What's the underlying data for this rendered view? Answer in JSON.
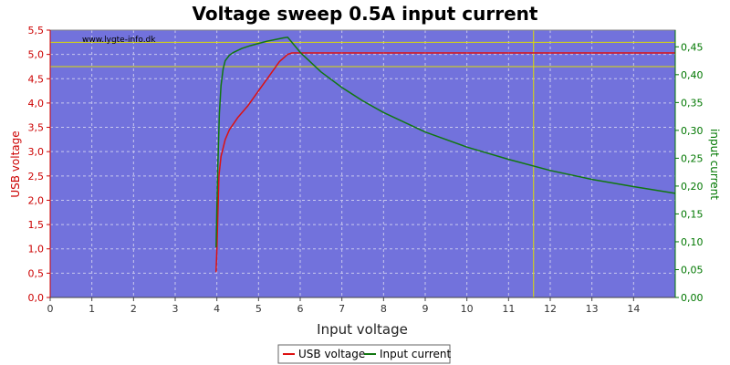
{
  "chart_data": {
    "type": "line",
    "title": "Voltage sweep 0.5A input current",
    "watermark": "www.lygte-info.dk",
    "xlabel": "Input voltage",
    "ylabel": "USB voltage",
    "y2label": "input current",
    "xlim": [
      0,
      15
    ],
    "ylim": [
      0,
      5.5
    ],
    "y2lim": [
      0,
      0.48
    ],
    "x_ticks": [
      "0",
      "1",
      "2",
      "3",
      "4",
      "5",
      "6",
      "7",
      "8",
      "9",
      "10",
      "11",
      "12",
      "13",
      "14"
    ],
    "y_ticks": [
      "0,0",
      "0,5",
      "1,0",
      "1,5",
      "2,0",
      "2,5",
      "3,0",
      "3,5",
      "4,0",
      "4,5",
      "5,0",
      "5,5"
    ],
    "y2_ticks": [
      "0,00",
      "0,05",
      "0,10",
      "0,15",
      "0,20",
      "0,25",
      "0,30",
      "0,35",
      "0,40",
      "0,45"
    ],
    "grid": true,
    "legend_position": "bottom-center",
    "colors": {
      "plot_background": "#7272dc",
      "grid": "#c8c8ee",
      "usb_voltage": "#dd1111",
      "input_current": "#117711",
      "marker_lines": "#dddd00",
      "left_axis": "#cc0000",
      "right_axis": "#007700"
    },
    "reference_lines": {
      "horizontal_y_voltage": [
        5.25,
        4.75
      ],
      "vertical_x": [
        11.6
      ]
    },
    "series": [
      {
        "name": "USB voltage",
        "axis": "left",
        "x": [
          3.98,
          4.0,
          4.05,
          4.1,
          4.2,
          4.3,
          4.5,
          4.75,
          5.0,
          5.25,
          5.5,
          5.7,
          5.8,
          6.0,
          8.0,
          10.0,
          12.0,
          14.0,
          15.0
        ],
        "y": [
          0.52,
          1.0,
          2.5,
          2.9,
          3.25,
          3.45,
          3.7,
          3.95,
          4.25,
          4.55,
          4.85,
          5.0,
          5.03,
          5.03,
          5.03,
          5.03,
          5.03,
          5.03,
          5.03
        ]
      },
      {
        "name": "Input current",
        "axis": "right",
        "x": [
          3.98,
          4.02,
          4.06,
          4.1,
          4.15,
          4.2,
          4.3,
          4.4,
          4.6,
          4.8,
          5.0,
          5.2,
          5.4,
          5.6,
          5.7,
          5.8,
          6.0,
          6.5,
          7.0,
          7.5,
          8.0,
          9.0,
          10.0,
          11.0,
          12.0,
          13.0,
          14.0,
          15.0
        ],
        "y": [
          0.09,
          0.23,
          0.33,
          0.38,
          0.41,
          0.425,
          0.435,
          0.44,
          0.447,
          0.452,
          0.456,
          0.46,
          0.463,
          0.466,
          0.467,
          0.458,
          0.44,
          0.405,
          0.377,
          0.353,
          0.332,
          0.297,
          0.27,
          0.248,
          0.228,
          0.212,
          0.199,
          0.187
        ]
      }
    ]
  }
}
